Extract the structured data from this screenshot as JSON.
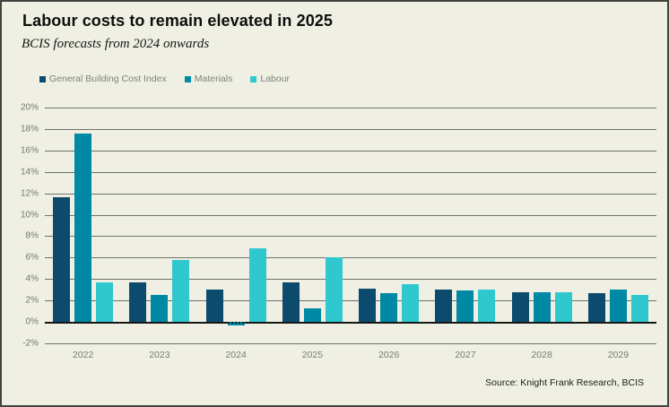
{
  "page": {
    "title": "Labour costs to remain elevated in 2025",
    "subtitle": "BCIS forecasts from 2024 onwards",
    "source": "Source: Knight Frank Research, BCIS"
  },
  "colors": {
    "background": "#eff0e3",
    "frame_border": "#41453f",
    "gridline": "#6e726c",
    "zero_line": "#1d1d1d",
    "axis_text": "#7a7a7a",
    "legend_text": "#7f7f7f",
    "series_gbci": "#0c4a6e",
    "series_materials": "#0089a4",
    "series_labour": "#2fc8ce"
  },
  "chart_data": {
    "type": "bar",
    "title": "Labour costs to remain elevated in 2025",
    "subtitle": "BCIS forecasts from 2024 onwards",
    "categories": [
      "2022",
      "2023",
      "2024",
      "2025",
      "2026",
      "2027",
      "2028",
      "2029"
    ],
    "series": [
      {
        "name": "General Building Cost Index",
        "color": "#0c4a6e",
        "values": [
          11.6,
          3.7,
          3.0,
          3.7,
          3.1,
          3.0,
          2.8,
          2.7
        ]
      },
      {
        "name": "Materials",
        "color": "#0089a4",
        "values": [
          17.6,
          2.5,
          -0.3,
          1.3,
          2.7,
          2.9,
          2.8,
          3.0
        ]
      },
      {
        "name": "Labour",
        "color": "#2fc8ce",
        "values": [
          3.7,
          5.8,
          6.9,
          6.0,
          3.5,
          3.0,
          2.8,
          2.5
        ]
      }
    ],
    "xlabel": "",
    "ylabel": "",
    "ylim": [
      -2,
      20
    ],
    "ytick_step": 2,
    "ytick_suffix": "%",
    "grid": true,
    "legend_position": "top-left",
    "source": "Source: Knight Frank Research, BCIS"
  }
}
